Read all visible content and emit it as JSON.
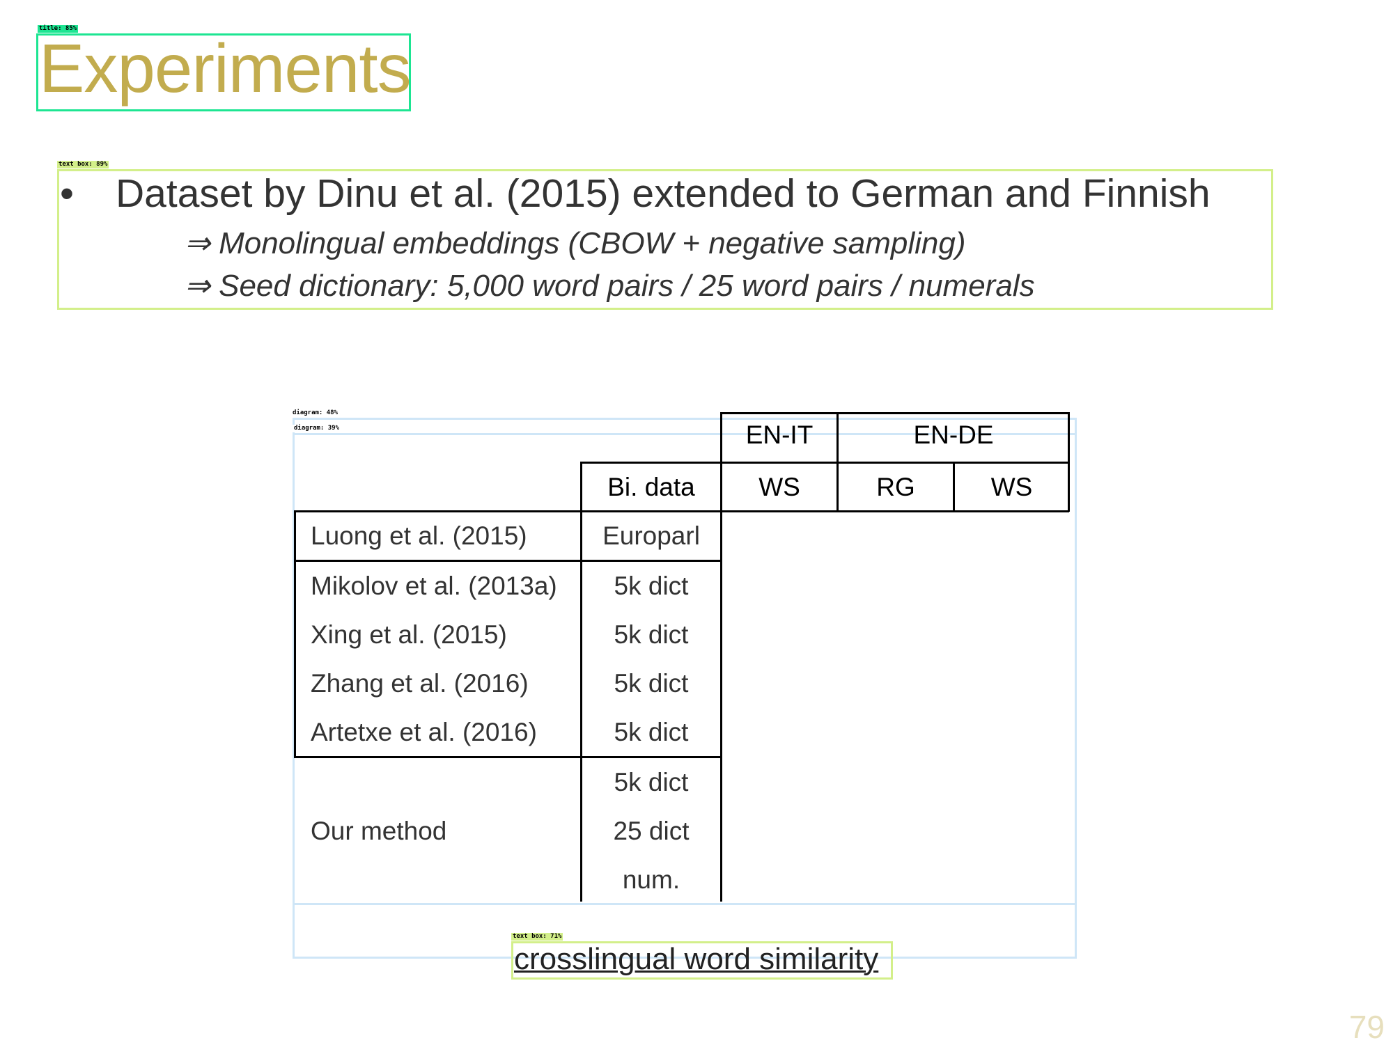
{
  "theme": {
    "title_color": "#c2ac4e",
    "title_box_color": "#1de592",
    "textbox_color": "#d3ef8a",
    "diagram_box_color": "#cfe6f7",
    "page_number_color": "#e7dfbd"
  },
  "annotations": {
    "title_tag": "title: 85%",
    "text_box_tag": "text box: 89%",
    "diagram_tag_1": "diagram: 48%",
    "diagram_tag_2": "diagram: 39%",
    "caption_tag": "text box: 71%"
  },
  "slide": {
    "title": "Experiments",
    "bullet": "•",
    "main_text": "Dataset by Dinu et al. (2015) extended to German and Finnish",
    "sub_items": [
      "⇒ Monolingual embeddings (CBOW + negative sampling)",
      "⇒ Seed dictionary:  5,000 word pairs / 25 word pairs / numerals"
    ],
    "caption": "crosslingual word similarity",
    "page_number": "79"
  },
  "table": {
    "group_headers": [
      "EN-IT",
      "EN-DE"
    ],
    "column_headers": [
      "Bi. data",
      "WS",
      "RG",
      "WS"
    ],
    "rows": [
      {
        "method": "Luong et al. (2015)",
        "data": "Europarl"
      },
      {
        "method": "Mikolov et al. (2013a)",
        "data": "5k dict"
      },
      {
        "method": "Xing et al. (2015)",
        "data": "5k dict"
      },
      {
        "method": "Zhang et al. (2016)",
        "data": "5k dict"
      },
      {
        "method": "Artetxe et al. (2016)",
        "data": "5k dict"
      }
    ],
    "our_method": {
      "label": "Our method",
      "data": [
        "5k dict",
        "25 dict",
        "num."
      ]
    }
  }
}
